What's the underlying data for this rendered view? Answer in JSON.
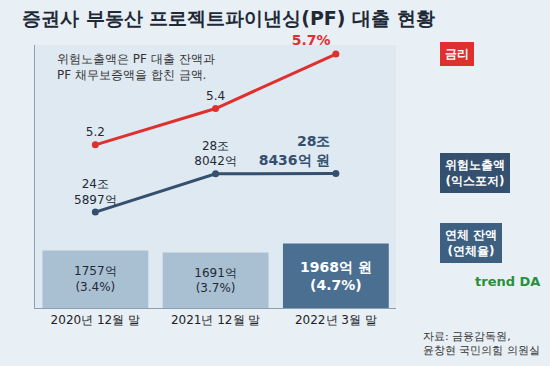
{
  "chart_data": [
    {
      "type": "bar",
      "title": "증권사 부동산 프로젝트파이낸싱(PF) 대출 현황",
      "subtitle": "위험노출액은 PF 대출 잔액과\nPF 채무보증액을 합친 금액.",
      "annotations": [
        "자료: 금융감독원,\n윤창현 국민의힘 의원실",
        "trend DA"
      ],
      "categories": [
        "2020년 12월 말",
        "2021년 12월 말",
        "2022년 3월 말"
      ],
      "series": [
        {
          "name": "연체 잔액\n(연체율)",
          "color": "#3d5f80",
          "values": [
            1757,
            1691,
            1968
          ],
          "value_labels": [
            "1757억\n(3.4%)",
            "1691억\n(3.7%)",
            "1968억 원\n(4.7%)"
          ],
          "colors": [
            "#a9c0d3",
            "#a9c0d3",
            "#4a6f91"
          ]
        }
      ],
      "ylim": [
        0,
        8000
      ],
      "data_labels": true,
      "tick_labels": "x"
    },
    {
      "type": "line",
      "categories": [
        "2020년 12월 말",
        "2021년 12월 말",
        "2022년 3월 말"
      ],
      "series": [
        {
          "name": "위험노출액\n(익스포저)",
          "color": "#34506e",
          "values": [
            245897,
            288042,
            288436
          ],
          "value_labels": [
            "24조\n5897억",
            "28조\n8042억",
            "28조\n8436억 원"
          ]
        }
      ],
      "ylim": [
        140000,
        430000
      ],
      "data_labels": true,
      "tick_labels": false
    },
    {
      "type": "line",
      "categories": [
        "2020년 12월 말",
        "2021년 12월 말",
        "2022년 3월 말"
      ],
      "series": [
        {
          "name": "금리",
          "color": "#e0302d",
          "values": [
            5.2,
            5.4,
            5.7
          ],
          "value_labels": [
            "5.2",
            "5.4",
            "5.7%"
          ]
        }
      ],
      "ylim": [
        4.3,
        5.75
      ],
      "data_labels": true,
      "tick_labels": false
    }
  ]
}
